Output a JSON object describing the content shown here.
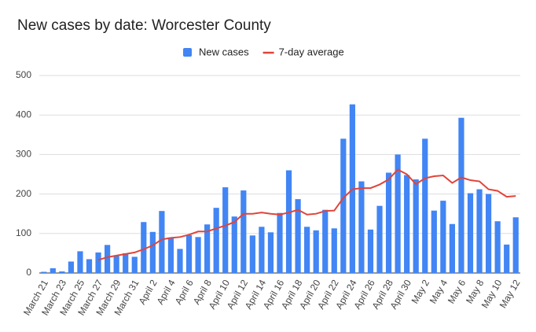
{
  "chart_data": {
    "type": "bar",
    "title": "New cases by date: Worcester County",
    "categories": [
      "March 21",
      null,
      "March 23",
      null,
      "March 25",
      null,
      "March 27",
      null,
      "March 29",
      null,
      "March 31",
      null,
      "April 2",
      null,
      "April 4",
      null,
      "April 6",
      null,
      "April 8",
      null,
      "April 10",
      null,
      "April 12",
      null,
      "April 14",
      null,
      "April 16",
      null,
      "April 18",
      null,
      "April 20",
      null,
      "April 22",
      null,
      "April 24",
      null,
      "April 26",
      null,
      "April 28",
      null,
      "April 30",
      null,
      "May 2",
      null,
      "May 4",
      null,
      "May 6",
      null,
      "May 8",
      null,
      "May 10",
      null,
      "May 12"
    ],
    "series": [
      {
        "name": "New cases",
        "type": "bar",
        "color": "#4285f4",
        "values": [
          3,
          12,
          4,
          29,
          55,
          35,
          52,
          71,
          43,
          50,
          41,
          129,
          104,
          157,
          90,
          61,
          96,
          91,
          123,
          165,
          217,
          143,
          209,
          95,
          117,
          103,
          152,
          260,
          187,
          117,
          108,
          160,
          113,
          340,
          427,
          232,
          110,
          170,
          254,
          300,
          248,
          237,
          340,
          158,
          183,
          124,
          393,
          202,
          212,
          200,
          131,
          72,
          141
        ]
      },
      {
        "name": "7-day average",
        "type": "line",
        "color": "#e0443a",
        "values": [
          null,
          null,
          null,
          null,
          null,
          null,
          33,
          40,
          44,
          48,
          52,
          60,
          70,
          85,
          89,
          91,
          97,
          105,
          105,
          113,
          120,
          129,
          150,
          150,
          153,
          150,
          148,
          153,
          160,
          148,
          150,
          157,
          158,
          190,
          212,
          215,
          215,
          224,
          237,
          262,
          250,
          225,
          240,
          245,
          247,
          228,
          242,
          235,
          232,
          212,
          208,
          193,
          195
        ]
      }
    ],
    "ylim": [
      0,
      500
    ],
    "yticks": [
      0,
      100,
      200,
      300,
      400,
      500
    ],
    "grid": true,
    "legend": "top"
  }
}
